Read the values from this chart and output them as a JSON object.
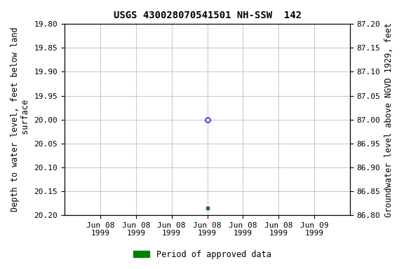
{
  "title": "USGS 430028070541501 NH-SSW  142",
  "ylabel_left": "Depth to water level, feet below land\n surface",
  "ylabel_right": "Groundwater level above NGVD 1929, feet",
  "ylim_left": [
    20.2,
    19.8
  ],
  "ylim_right": [
    86.8,
    87.2
  ],
  "yticks_left": [
    19.8,
    19.85,
    19.9,
    19.95,
    20.0,
    20.05,
    20.1,
    20.15,
    20.2
  ],
  "yticks_right": [
    87.2,
    87.15,
    87.1,
    87.05,
    87.0,
    86.95,
    86.9,
    86.85,
    86.8
  ],
  "point_open": {
    "x": 4,
    "value": 20.0,
    "color": "#0000ff",
    "marker": "o",
    "facecolor": "none",
    "size": 5
  },
  "point_closed": {
    "x": 4,
    "value": 20.185,
    "color": "#008000",
    "marker": "s",
    "size": 3.5
  },
  "xticks": [
    1,
    2,
    3,
    4,
    5,
    6,
    7
  ],
  "xticklabels": [
    "Jun 08\n1999",
    "Jun 08\n1999",
    "Jun 08\n1999",
    "Jun 08\n1999",
    "Jun 08\n1999",
    "Jun 08\n1999",
    "Jun 09\n1999"
  ],
  "xlim": [
    0.0,
    8.0
  ],
  "grid_color": "#b0b0b0",
  "bg_color": "#ffffff",
  "legend_label": "Period of approved data",
  "legend_color": "#008000",
  "title_fontsize": 10,
  "label_fontsize": 8.5,
  "tick_fontsize": 8
}
